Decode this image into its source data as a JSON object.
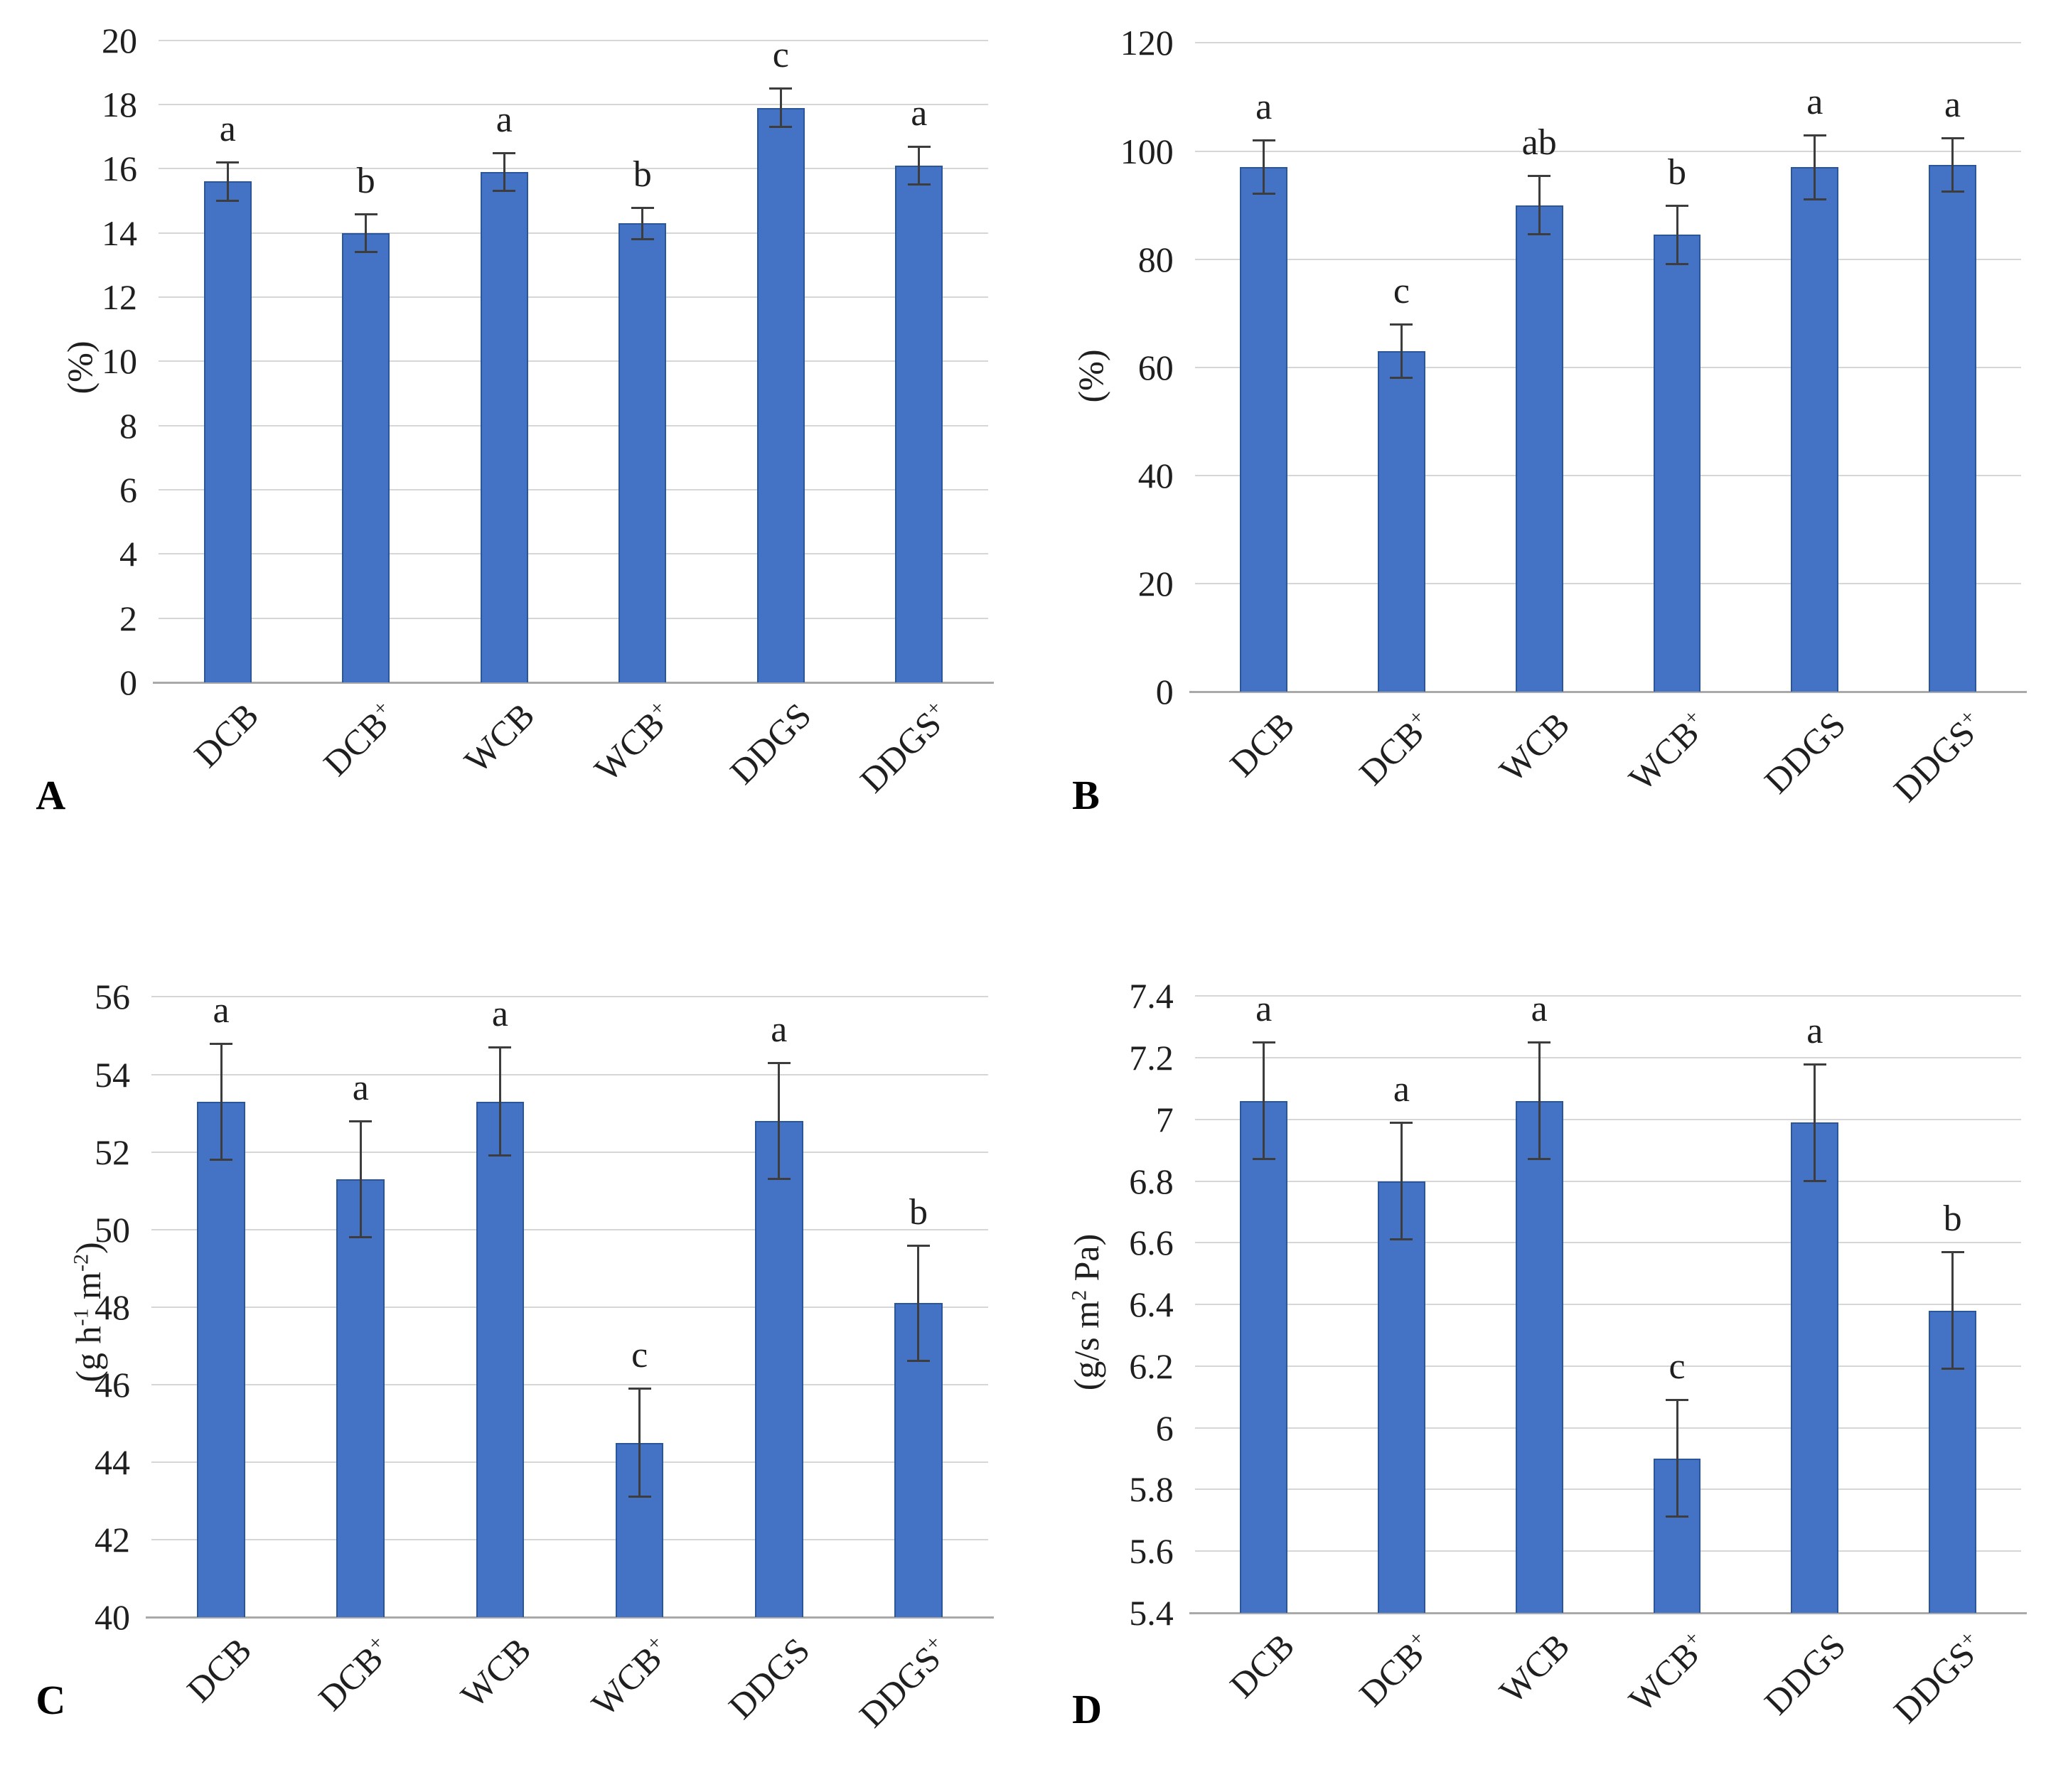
{
  "figure": {
    "background": "#ffffff",
    "bar_fill": "#4472c4",
    "bar_border": "#2b579a",
    "gridline_color": "#d6d6d6",
    "axis_line_color": "#a9a9a9",
    "error_bar_color": "#3d3d3d",
    "text_color": "#1f1f1f"
  },
  "categories": [
    "DCB",
    "DCB+",
    "WCB",
    "WCB+",
    "DDGS",
    "DDGS+"
  ],
  "chart_data": [
    {
      "panel_label": "A",
      "type": "bar",
      "ylabel_text": "(%)",
      "ylabel_runs": [
        {
          "text": "(%)"
        }
      ],
      "ylim": [
        0,
        20
      ],
      "yticks": [
        "20",
        "18",
        "16",
        "14",
        "12",
        "10",
        "8",
        "6",
        "4",
        "2",
        "0"
      ],
      "categories": [
        "DCB",
        "DCB+",
        "WCB",
        "WCB+",
        "DDGS",
        "DDGS+"
      ],
      "values": [
        15.6,
        14.0,
        15.9,
        14.3,
        17.9,
        16.1
      ],
      "errors": [
        0.6,
        0.6,
        0.6,
        0.5,
        0.6,
        0.6
      ],
      "sig_letters": [
        "a",
        "b",
        "a",
        "b",
        "c",
        "a"
      ],
      "grid": true,
      "legend": "none"
    },
    {
      "panel_label": "B",
      "type": "bar",
      "ylabel_text": "(%)",
      "ylabel_runs": [
        {
          "text": "(%)"
        }
      ],
      "ylim": [
        0,
        120
      ],
      "yticks": [
        "120",
        "100",
        "80",
        "60",
        "40",
        "20",
        "0"
      ],
      "categories": [
        "DCB",
        "DCB+",
        "WCB",
        "WCB+",
        "DDGS",
        "DDGS+"
      ],
      "values": [
        97,
        63,
        90,
        84.5,
        97,
        97.5
      ],
      "errors": [
        5,
        5,
        5.5,
        5.5,
        6,
        5
      ],
      "sig_letters": [
        "a",
        "c",
        "ab",
        "b",
        "a",
        "a"
      ],
      "grid": true,
      "legend": "none"
    },
    {
      "panel_label": "C",
      "type": "bar",
      "ylabel_text": "(g h-1 m-2)",
      "ylabel_runs": [
        {
          "text": "(g h"
        },
        {
          "text": "-1",
          "sup": true
        },
        {
          "text": " m"
        },
        {
          "text": "-2",
          "sup": true
        },
        {
          "text": ")"
        }
      ],
      "ylim": [
        40,
        56
      ],
      "yticks": [
        "56",
        "54",
        "52",
        "50",
        "48",
        "46",
        "44",
        "42",
        "40"
      ],
      "categories": [
        "DCB",
        "DCB+",
        "WCB",
        "WCB+",
        "DDGS",
        "DDGS+"
      ],
      "values": [
        53.3,
        51.3,
        53.3,
        44.5,
        52.8,
        48.1
      ],
      "errors": [
        1.5,
        1.5,
        1.4,
        1.4,
        1.5,
        1.5
      ],
      "sig_letters": [
        "a",
        "a",
        "a",
        "c",
        "a",
        "b"
      ],
      "grid": true,
      "legend": "none"
    },
    {
      "panel_label": "D",
      "type": "bar",
      "ylabel_text": "(g/s m2 Pa)",
      "ylabel_runs": [
        {
          "text": "(g/s m"
        },
        {
          "text": "2",
          "sup": true
        },
        {
          "text": " Pa)"
        }
      ],
      "ylim": [
        5.4,
        7.4
      ],
      "yticks": [
        "7.4",
        "7.2",
        "7",
        "6.8",
        "6.6",
        "6.4",
        "6.2",
        "6",
        "5.8",
        "5.6",
        "5.4"
      ],
      "categories": [
        "DCB",
        "DCB+",
        "WCB",
        "WCB+",
        "DDGS",
        "DDGS+"
      ],
      "values": [
        7.06,
        6.8,
        7.06,
        5.9,
        6.99,
        6.38
      ],
      "errors": [
        0.19,
        0.19,
        0.19,
        0.19,
        0.19,
        0.19
      ],
      "sig_letters": [
        "a",
        "a",
        "a",
        "c",
        "a",
        "b"
      ],
      "grid": true,
      "legend": "none"
    }
  ]
}
